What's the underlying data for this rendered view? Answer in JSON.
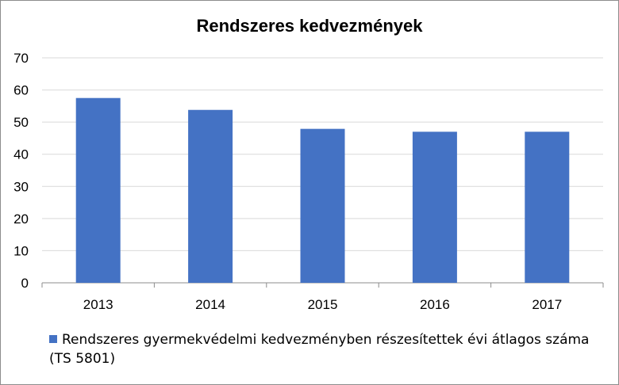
{
  "chart_data": {
    "type": "bar",
    "title": "Rendszeres kedvezmények",
    "categories": [
      "2013",
      "2014",
      "2015",
      "2016",
      "2017"
    ],
    "series": [
      {
        "name": "Rendszeres gyermekvédelmi kedvezményben részesítettek évi átlagos száma (TS 5801)",
        "values": [
          57.5,
          53.8,
          47.9,
          47.0,
          47.0
        ],
        "color": "#4472c4"
      }
    ],
    "ylim": [
      0,
      70
    ],
    "yticks": [
      "0",
      "10",
      "20",
      "30",
      "40",
      "50",
      "60",
      "70"
    ],
    "grid": true,
    "legend_position": "bottom"
  }
}
